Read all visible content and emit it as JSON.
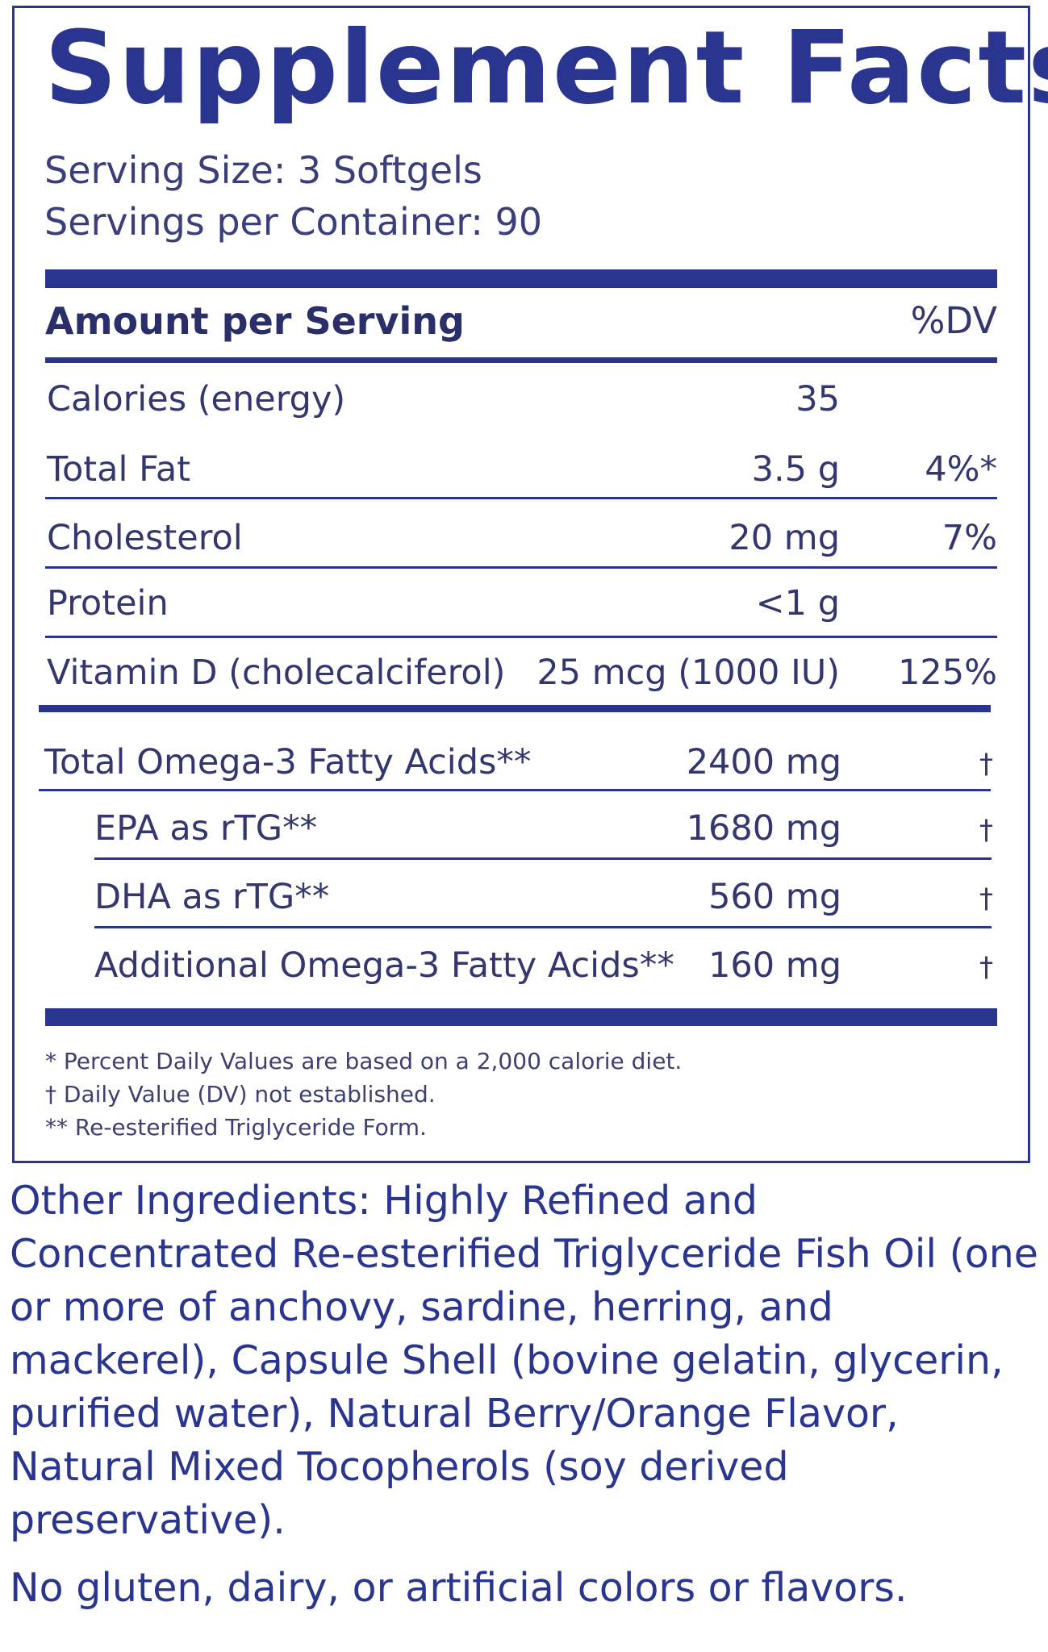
{
  "label": {
    "title": "Supplement Facts",
    "serving_size": "Serving Size: 3 Softgels",
    "servings_per_container": "Servings per Container: 90",
    "header": {
      "amount": "Amount per Serving",
      "dv": "%DV"
    },
    "nutrients": [
      {
        "name": "Calories (energy)",
        "amount": "35",
        "dv": ""
      },
      {
        "name": "Total Fat",
        "amount": "3.5 g",
        "dv": "4%*"
      },
      {
        "name": "Cholesterol",
        "amount": "20 mg",
        "dv": "7%"
      },
      {
        "name": "Protein",
        "amount": "<1 g",
        "dv": ""
      },
      {
        "name": "Vitamin D (cholecalciferol)",
        "amount": "25 mcg (1000 IU)",
        "dv": "125%"
      }
    ],
    "omega": [
      {
        "name": "Total Omega-3 Fatty Acids**",
        "amount": "2400 mg",
        "dv": "†"
      },
      {
        "name": "EPA as rTG**",
        "amount": "1680 mg",
        "dv": "†"
      },
      {
        "name": "DHA as rTG**",
        "amount": "560 mg",
        "dv": "†"
      },
      {
        "name": "Additional Omega-3 Fatty Acids**",
        "amount": "160 mg",
        "dv": "†"
      }
    ],
    "footnotes": [
      "* Percent Daily Values are based on a 2,000 calorie diet.",
      "† Daily Value (DV) not established.",
      "** Re-esterified Triglyceride Form."
    ]
  },
  "other_ingredients": "Other Ingredients: Highly Refined and Concentrated Re-esterified Triglyceride Fish Oil (one or more of anchovy, sardine, herring, and mackerel), Capsule Shell (bovine gelatin, glycerin, purified water), Natural Berry/Orange Flavor, Natural Mixed Tocopherols (soy derived preservative).",
  "free_from": "No gluten, dairy, or artificial colors or flavors.",
  "colors": {
    "brand_blue": "#2a3590"
  }
}
